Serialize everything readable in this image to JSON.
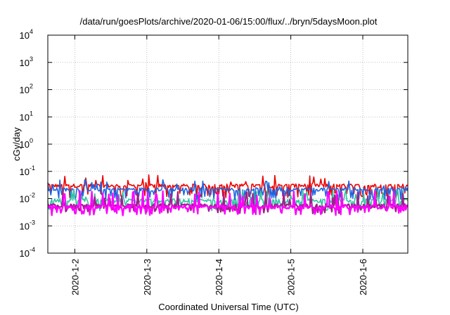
{
  "chart_data": {
    "type": "area",
    "title": "/data/run/goesPlots/archive/2020-01-06/15:00/flux/../bryn/5daysMoon.plot",
    "xlabel": "Coordinated Universal Time (UTC)",
    "ylabel": "cGy/day",
    "y_scale": "log",
    "ylim": [
      0.0001,
      10000
    ],
    "y_ticks": [
      {
        "base": "10",
        "exp": "4",
        "value": 10000
      },
      {
        "base": "10",
        "exp": "3",
        "value": 1000
      },
      {
        "base": "10",
        "exp": "2",
        "value": 100
      },
      {
        "base": "10",
        "exp": "1",
        "value": 10
      },
      {
        "base": "10",
        "exp": "0",
        "value": 1
      },
      {
        "base": "10",
        "exp": "-1",
        "value": 0.1
      },
      {
        "base": "10",
        "exp": "-2",
        "value": 0.01
      },
      {
        "base": "10",
        "exp": "-3",
        "value": 0.001
      },
      {
        "base": "10",
        "exp": "-4",
        "value": 0.0001
      }
    ],
    "x_ticks": [
      "2020-1-2",
      "2020-1-3",
      "2020-1-4",
      "2020-1-5",
      "2020-1-6"
    ],
    "xlim": [
      "2020-01-01T15:00",
      "2020-01-06T15:00"
    ],
    "grid": true,
    "series": [
      {
        "color": "#ee0000",
        "baseline": 0.03,
        "spike_low": 0.013,
        "spike_high": 0.075
      },
      {
        "color": "#1e64e0",
        "baseline": 0.022,
        "spike_low": 0.011,
        "spike_high": 0.05
      },
      {
        "color": "#2ec4a0",
        "baseline": 0.0085,
        "spike_low": 0.0045,
        "spike_high": 0.022
      },
      {
        "color": "#a0208c",
        "baseline": 0.0055,
        "spike_low": 0.0035,
        "spike_high": 0.018
      },
      {
        "color": "#ff00ff",
        "baseline": 0.005,
        "spike_low": 0.003,
        "spike_high": 0.02
      }
    ]
  }
}
